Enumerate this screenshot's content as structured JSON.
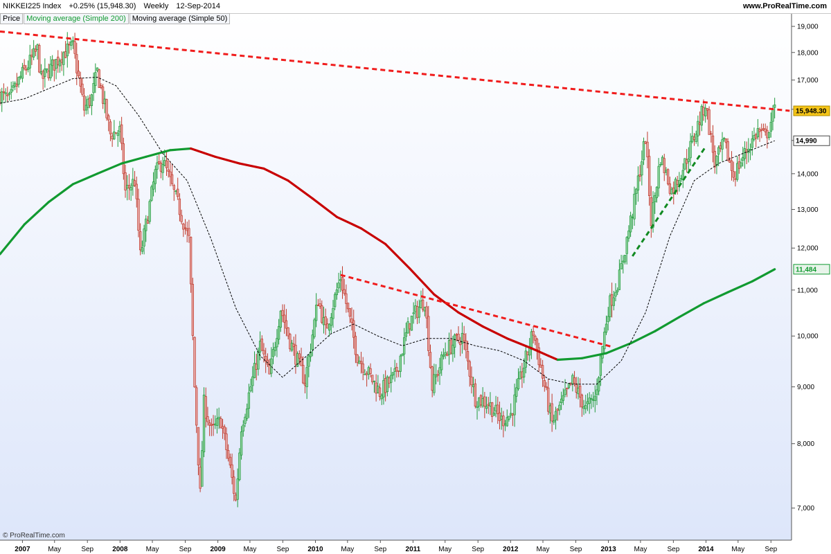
{
  "header": {
    "symbol": "NIKKEI225 Index",
    "change": "+0.25% (15,948.30)",
    "period": "Weekly",
    "date": "12-Sep-2014",
    "site": "www.ProRealTime.com"
  },
  "legend": {
    "price": "Price",
    "ma200": "Moving average (Simple 200)",
    "ma50": "Moving average (Simple 50)"
  },
  "copyright": "© ProRealTime.com",
  "colors": {
    "up": "#1f9a3a",
    "down": "#c0392b",
    "ma200_up": "#119a30",
    "ma200_down": "#c80000",
    "ma50": "#000000",
    "trend_red": "#f01c1c",
    "trend_green": "#118a22",
    "price_tag": "#f5c518",
    "bg_top": "#ffffff",
    "bg_bottom": "#dde6fa"
  },
  "chart_data": {
    "type": "candlestick",
    "title": "NIKKEI225 Index",
    "period": "Weekly",
    "scale": "log",
    "ylim": [
      6550,
      19500
    ],
    "y_ticks": [
      7000,
      8000,
      9000,
      10000,
      11000,
      12000,
      13000,
      14000,
      15000,
      16000,
      17000,
      18000,
      19000
    ],
    "y_tick_labels": [
      "7,000",
      "8,000",
      "9,000",
      "10,000",
      "11,000",
      "12,000",
      "13,000",
      "14,000",
      "15,000",
      "16,000",
      "17,000",
      "18,000",
      "19,000"
    ],
    "x_range": [
      "2006-10-09",
      "2014-11-17"
    ],
    "x_ticks": [
      {
        "date": "2007-01-01",
        "label": "2007"
      },
      {
        "date": "2007-05-01",
        "label": "May"
      },
      {
        "date": "2007-09-01",
        "label": "Sep"
      },
      {
        "date": "2008-01-01",
        "label": "2008"
      },
      {
        "date": "2008-05-01",
        "label": "May"
      },
      {
        "date": "2008-09-01",
        "label": "Sep"
      },
      {
        "date": "2009-01-01",
        "label": "2009"
      },
      {
        "date": "2009-05-01",
        "label": "May"
      },
      {
        "date": "2009-09-01",
        "label": "Sep"
      },
      {
        "date": "2010-01-01",
        "label": "2010"
      },
      {
        "date": "2010-05-01",
        "label": "May"
      },
      {
        "date": "2010-09-01",
        "label": "Sep"
      },
      {
        "date": "2011-01-01",
        "label": "2011"
      },
      {
        "date": "2011-05-01",
        "label": "May"
      },
      {
        "date": "2011-09-01",
        "label": "Sep"
      },
      {
        "date": "2012-01-01",
        "label": "2012"
      },
      {
        "date": "2012-05-01",
        "label": "May"
      },
      {
        "date": "2012-09-01",
        "label": "Sep"
      },
      {
        "date": "2013-01-01",
        "label": "2013"
      },
      {
        "date": "2013-05-01",
        "label": "May"
      },
      {
        "date": "2013-09-01",
        "label": "Sep"
      },
      {
        "date": "2014-01-01",
        "label": "2014"
      },
      {
        "date": "2014-05-01",
        "label": "May"
      },
      {
        "date": "2014-09-01",
        "label": "Sep"
      }
    ],
    "price_path": [
      [
        "2006-10-09",
        16500
      ],
      [
        "2006-11-13",
        16300
      ],
      [
        "2006-12-25",
        17100
      ],
      [
        "2007-02-26",
        18100
      ],
      [
        "2007-03-12",
        17000
      ],
      [
        "2007-04-23",
        17500
      ],
      [
        "2007-06-04",
        18000
      ],
      [
        "2007-07-09",
        18200
      ],
      [
        "2007-08-20",
        16000
      ],
      [
        "2007-09-17",
        16400
      ],
      [
        "2007-10-08",
        17300
      ],
      [
        "2007-11-26",
        15200
      ],
      [
        "2007-12-31",
        15300
      ],
      [
        "2008-01-21",
        13500
      ],
      [
        "2008-02-25",
        13800
      ],
      [
        "2008-03-17",
        11800
      ],
      [
        "2008-05-12",
        14000
      ],
      [
        "2008-06-09",
        14400
      ],
      [
        "2008-08-11",
        13000
      ],
      [
        "2008-09-15",
        12200
      ],
      [
        "2008-10-06",
        9000
      ],
      [
        "2008-10-27",
        7200
      ],
      [
        "2008-11-10",
        8700
      ],
      [
        "2008-12-08",
        8200
      ],
      [
        "2009-01-12",
        8400
      ],
      [
        "2009-02-16",
        7600
      ],
      [
        "2009-03-09",
        7100
      ],
      [
        "2009-03-30",
        8300
      ],
      [
        "2009-05-18",
        9300
      ],
      [
        "2009-06-08",
        9800
      ],
      [
        "2009-07-13",
        9200
      ],
      [
        "2009-08-24",
        10600
      ],
      [
        "2009-09-28",
        9900
      ],
      [
        "2009-11-23",
        9100
      ],
      [
        "2010-01-11",
        10800
      ],
      [
        "2010-02-08",
        10100
      ],
      [
        "2010-04-05",
        11300
      ],
      [
        "2010-06-07",
        9600
      ],
      [
        "2010-08-30",
        8900
      ],
      [
        "2010-10-25",
        9200
      ],
      [
        "2010-12-20",
        10300
      ],
      [
        "2011-02-14",
        10800
      ],
      [
        "2011-03-14",
        9000
      ],
      [
        "2011-05-02",
        9700
      ],
      [
        "2011-07-04",
        10000
      ],
      [
        "2011-08-22",
        8800
      ],
      [
        "2011-10-10",
        8700
      ],
      [
        "2011-11-28",
        8400
      ],
      [
        "2012-01-02",
        8500
      ],
      [
        "2012-03-26",
        10100
      ],
      [
        "2012-06-04",
        8350
      ],
      [
        "2012-08-20",
        9100
      ],
      [
        "2012-10-08",
        8600
      ],
      [
        "2012-11-12",
        8800
      ],
      [
        "2012-12-31",
        10600
      ],
      [
        "2013-02-11",
        11300
      ],
      [
        "2013-04-08",
        13200
      ],
      [
        "2013-05-20",
        15100
      ],
      [
        "2013-06-10",
        12700
      ],
      [
        "2013-07-15",
        14500
      ],
      [
        "2013-08-26",
        13500
      ],
      [
        "2013-10-14",
        14300
      ],
      [
        "2013-12-30",
        16200
      ],
      [
        "2014-02-03",
        14300
      ],
      [
        "2014-03-10",
        14900
      ],
      [
        "2014-04-14",
        13950
      ],
      [
        "2014-06-02",
        14700
      ],
      [
        "2014-07-14",
        15300
      ],
      [
        "2014-08-11",
        15100
      ],
      [
        "2014-09-15",
        15948
      ]
    ],
    "series": [
      {
        "name": "Moving average (Simple 200)",
        "points": [
          [
            "2006-10-09",
            11850
          ],
          [
            "2007-01-08",
            12600
          ],
          [
            "2007-04-09",
            13200
          ],
          [
            "2007-07-09",
            13700
          ],
          [
            "2007-10-08",
            14000
          ],
          [
            "2008-01-07",
            14300
          ],
          [
            "2008-04-07",
            14500
          ],
          [
            "2008-07-07",
            14700
          ],
          [
            "2008-09-22",
            14750
          ],
          [
            "2008-12-22",
            14500
          ],
          [
            "2009-03-23",
            14300
          ],
          [
            "2009-06-22",
            14150
          ],
          [
            "2009-09-21",
            13800
          ],
          [
            "2009-12-21",
            13300
          ],
          [
            "2010-03-22",
            12800
          ],
          [
            "2010-06-21",
            12500
          ],
          [
            "2010-09-20",
            12100
          ],
          [
            "2010-12-20",
            11500
          ],
          [
            "2011-03-21",
            10900
          ],
          [
            "2011-06-20",
            10500
          ],
          [
            "2011-09-19",
            10200
          ],
          [
            "2011-12-19",
            9950
          ],
          [
            "2012-03-19",
            9750
          ],
          [
            "2012-05-21",
            9600
          ],
          [
            "2012-06-25",
            9520
          ],
          [
            "2012-09-24",
            9550
          ],
          [
            "2012-12-24",
            9650
          ],
          [
            "2013-03-25",
            9850
          ],
          [
            "2013-06-24",
            10100
          ],
          [
            "2013-09-23",
            10400
          ],
          [
            "2013-12-23",
            10700
          ],
          [
            "2014-03-24",
            10950
          ],
          [
            "2014-06-23",
            11200
          ],
          [
            "2014-09-15",
            11484
          ]
        ],
        "current": "11,484"
      },
      {
        "name": "Moving average (Simple 50)",
        "points": [
          [
            "2006-10-09",
            16200
          ],
          [
            "2007-01-08",
            16350
          ],
          [
            "2007-04-09",
            16700
          ],
          [
            "2007-07-09",
            17050
          ],
          [
            "2007-10-08",
            17100
          ],
          [
            "2007-12-17",
            16800
          ],
          [
            "2008-03-10",
            15800
          ],
          [
            "2008-06-09",
            14600
          ],
          [
            "2008-09-08",
            13800
          ],
          [
            "2008-12-08",
            12200
          ],
          [
            "2009-03-09",
            10600
          ],
          [
            "2009-06-08",
            9600
          ],
          [
            "2009-08-31",
            9180
          ],
          [
            "2009-11-30",
            9600
          ],
          [
            "2010-03-01",
            10050
          ],
          [
            "2010-05-24",
            10250
          ],
          [
            "2010-08-23",
            10000
          ],
          [
            "2010-11-22",
            9800
          ],
          [
            "2011-02-21",
            9950
          ],
          [
            "2011-05-23",
            9950
          ],
          [
            "2011-08-22",
            9800
          ],
          [
            "2011-11-21",
            9700
          ],
          [
            "2012-02-20",
            9500
          ],
          [
            "2012-05-21",
            9150
          ],
          [
            "2012-08-20",
            9050
          ],
          [
            "2012-11-19",
            9050
          ],
          [
            "2013-02-18",
            9500
          ],
          [
            "2013-05-20",
            10500
          ],
          [
            "2013-08-19",
            12300
          ],
          [
            "2013-11-18",
            13800
          ],
          [
            "2014-02-17",
            14300
          ],
          [
            "2014-05-19",
            14600
          ],
          [
            "2014-09-15",
            14990
          ]
        ],
        "current": "14,990"
      }
    ],
    "trend_lines": [
      {
        "color": "red",
        "from": [
          "2006-10-09",
          18800
        ],
        "to": [
          "2014-11-10",
          15950
        ]
      },
      {
        "color": "red",
        "from": [
          "2010-04-05",
          11350
        ],
        "to": [
          "2013-01-14",
          9780
        ]
      },
      {
        "color": "green",
        "from": [
          "2013-04-01",
          11800
        ],
        "to": [
          "2013-12-30",
          14800
        ]
      }
    ],
    "last_price": 15948.3,
    "last_price_label": "15,948.30"
  }
}
